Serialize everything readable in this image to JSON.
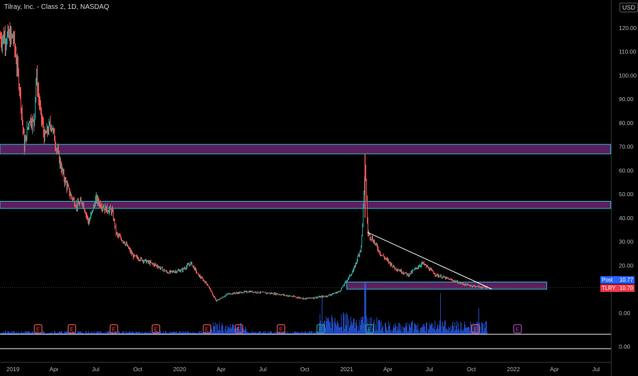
{
  "header": {
    "title": "Tilray, Inc. - Class 2, 1D, NASDAQ",
    "currency": "USD"
  },
  "price_tags": {
    "post_label": "Post",
    "post_value": "10.77",
    "ticker_label": "TLRY",
    "ticker_value": "10.70"
  },
  "colors": {
    "background": "#000000",
    "up": "#26a69a",
    "down": "#ef5350",
    "zone_fill": "#5c1f5e",
    "zone_border": "#26c6da",
    "volume": "#2962ff",
    "trendline": "#ffffff",
    "earnings_past": "#ef5350",
    "earnings_current": "#26a69a",
    "earnings_future": "#ab47bc"
  },
  "chart_data": {
    "type": "line",
    "title": "Tilray, Inc. - Class 2, 1D, NASDAQ",
    "x_axis": {
      "ticks": [
        "2019",
        "Apr",
        "Jul",
        "Oct",
        "2020",
        "Apr",
        "Jul",
        "Oct",
        "2021",
        "Apr",
        "Jul",
        "Oct",
        "2022",
        "Apr",
        "Jul"
      ],
      "tick_dates": [
        "2019-01-01",
        "2019-04-01",
        "2019-07-01",
        "2019-10-01",
        "2020-01-01",
        "2020-04-01",
        "2020-07-01",
        "2020-10-01",
        "2021-01-01",
        "2021-04-01",
        "2021-07-01",
        "2021-10-01",
        "2022-01-01",
        "2022-04-01",
        "2022-07-01"
      ]
    },
    "y_axis": {
      "ticks": [
        "120.00",
        "110.00",
        "100.00",
        "90.00",
        "80.00",
        "70.00",
        "60.00",
        "50.00",
        "40.00",
        "30.00",
        "20.00",
        "10.00"
      ],
      "values": [
        120,
        110,
        100,
        90,
        80,
        70,
        60,
        50,
        40,
        30,
        20,
        10
      ],
      "volume_ticks": [
        "0.00",
        "0.00"
      ],
      "ylim": [
        0,
        130
      ]
    },
    "series": [
      {
        "values": [
          {
            "x": "2019-01-01",
            "y": 116
          },
          {
            "x": "2019-01-15",
            "y": 95
          },
          {
            "x": "2019-01-25",
            "y": 70
          },
          {
            "x": "2019-02-05",
            "y": 82
          },
          {
            "x": "2019-02-15",
            "y": 80
          },
          {
            "x": "2019-02-20",
            "y": 100
          },
          {
            "x": "2019-03-01",
            "y": 85
          },
          {
            "x": "2019-03-10",
            "y": 74
          },
          {
            "x": "2019-03-25",
            "y": 80
          },
          {
            "x": "2019-04-05",
            "y": 70
          },
          {
            "x": "2019-04-20",
            "y": 58
          },
          {
            "x": "2019-05-05",
            "y": 50
          },
          {
            "x": "2019-05-20",
            "y": 45
          },
          {
            "x": "2019-06-01",
            "y": 47
          },
          {
            "x": "2019-06-15",
            "y": 38
          },
          {
            "x": "2019-07-01",
            "y": 48
          },
          {
            "x": "2019-07-20",
            "y": 44
          },
          {
            "x": "2019-08-05",
            "y": 43
          },
          {
            "x": "2019-08-15",
            "y": 33
          },
          {
            "x": "2019-09-01",
            "y": 30
          },
          {
            "x": "2019-09-20",
            "y": 24
          },
          {
            "x": "2019-10-15",
            "y": 22
          },
          {
            "x": "2019-11-10",
            "y": 20
          },
          {
            "x": "2019-12-05",
            "y": 17
          },
          {
            "x": "2020-01-05",
            "y": 18
          },
          {
            "x": "2020-01-25",
            "y": 21
          },
          {
            "x": "2020-02-10",
            "y": 16
          },
          {
            "x": "2020-03-01",
            "y": 12
          },
          {
            "x": "2020-03-20",
            "y": 5
          },
          {
            "x": "2020-04-15",
            "y": 8
          },
          {
            "x": "2020-06-01",
            "y": 9
          },
          {
            "x": "2020-08-01",
            "y": 8
          },
          {
            "x": "2020-10-01",
            "y": 6
          },
          {
            "x": "2020-11-15",
            "y": 7
          },
          {
            "x": "2020-12-15",
            "y": 9
          },
          {
            "x": "2021-01-15",
            "y": 18
          },
          {
            "x": "2021-02-01",
            "y": 28
          },
          {
            "x": "2021-02-10",
            "y": 63
          },
          {
            "x": "2021-02-15",
            "y": 34
          },
          {
            "x": "2021-03-01",
            "y": 30
          },
          {
            "x": "2021-03-15",
            "y": 25
          },
          {
            "x": "2021-04-15",
            "y": 19
          },
          {
            "x": "2021-05-15",
            "y": 16
          },
          {
            "x": "2021-06-15",
            "y": 21
          },
          {
            "x": "2021-07-15",
            "y": 16
          },
          {
            "x": "2021-08-15",
            "y": 14
          },
          {
            "x": "2021-09-15",
            "y": 12
          },
          {
            "x": "2021-10-15",
            "y": 11
          },
          {
            "x": "2021-11-05",
            "y": 10.7
          }
        ]
      }
    ],
    "zones": [
      {
        "low": 67,
        "high": 71,
        "from": "2019-01-01",
        "to": "2022-09-30"
      },
      {
        "low": 44,
        "high": 47,
        "from": "2019-01-01",
        "to": "2022-09-15"
      },
      {
        "low": 10,
        "high": 13,
        "from": "2021-01-01",
        "to": "2022-03-15"
      }
    ],
    "trendline": {
      "from": {
        "x": "2021-02-15",
        "y": 34
      },
      "to": {
        "x": "2021-11-15",
        "y": 10
      }
    },
    "earnings_markers": [
      {
        "date": "2019-02-25",
        "label": "E",
        "status": "past"
      },
      {
        "date": "2019-05-10",
        "label": "E",
        "status": "past"
      },
      {
        "date": "2019-08-10",
        "label": "E",
        "status": "past"
      },
      {
        "date": "2019-11-10",
        "label": "E",
        "status": "past"
      },
      {
        "date": "2020-03-01",
        "label": "E",
        "status": "past"
      },
      {
        "date": "2020-05-10",
        "label": "E",
        "status": "past"
      },
      {
        "date": "2020-08-10",
        "label": "E",
        "status": "past"
      },
      {
        "date": "2020-11-05",
        "label": "E",
        "status": "current"
      },
      {
        "date": "2021-02-20",
        "label": "E",
        "status": "current"
      },
      {
        "date": "2021-10-10",
        "label": "E",
        "status": "past"
      },
      {
        "date": "2022-01-10",
        "label": "E",
        "status": "future"
      }
    ],
    "grid": false,
    "legend": "none"
  }
}
